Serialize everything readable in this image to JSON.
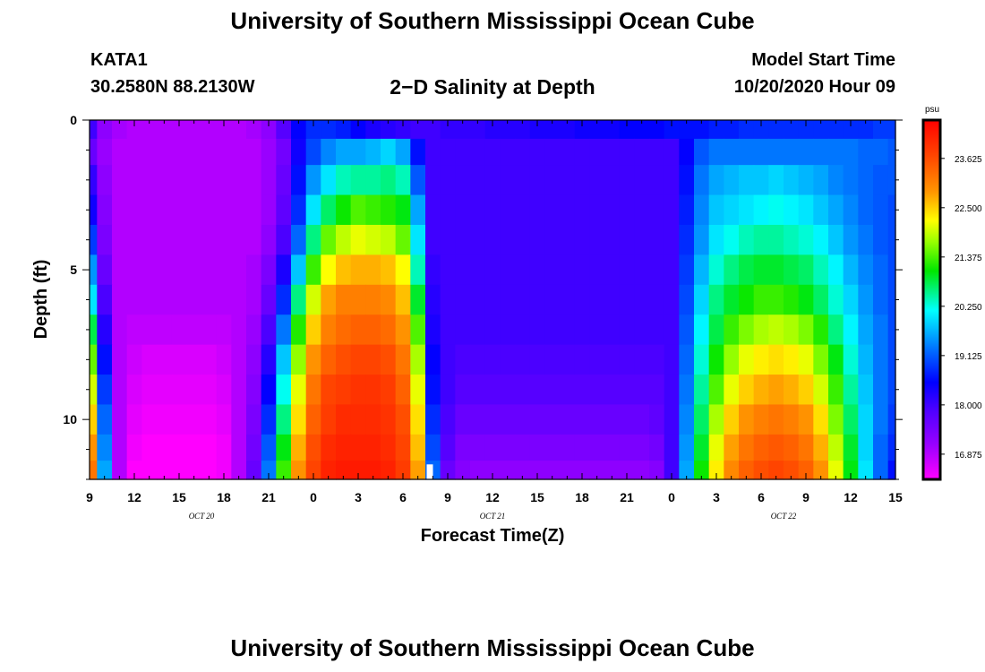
{
  "header": {
    "title": "University of Southern Mississippi Ocean Cube",
    "station": "KATA1",
    "coordinates": "30.2580N 88.2130W",
    "plot_title": "2−D Salinity at Depth",
    "model_start_label": "Model Start Time",
    "model_start_value": "10/20/2020 Hour 09"
  },
  "footer": {
    "title": "University of Southern Mississippi Ocean Cube"
  },
  "chart_data": {
    "type": "heatmap",
    "title": "2−D Salinity at Depth",
    "xlabel": "Forecast Time(Z)",
    "ylabel": "Depth (ft)",
    "x_tick_labels": [
      "9",
      "12",
      "15",
      "18",
      "21",
      "0",
      "3",
      "6",
      "9",
      "12",
      "15",
      "18",
      "21",
      "0",
      "3",
      "6",
      "9",
      "12",
      "15"
    ],
    "x_range_hours": [
      0,
      54
    ],
    "date_labels": [
      "OCT 20",
      "OCT 21",
      "OCT 22"
    ],
    "y_tick_labels": [
      "0",
      "5",
      "10"
    ],
    "y_range_ft": [
      0,
      12
    ],
    "colorbar": {
      "unit": "psu",
      "ticks": [
        "23.625",
        "22.500",
        "21.375",
        "20.250",
        "19.125",
        "18.000",
        "16.875"
      ],
      "range": [
        16.3,
        24.5
      ]
    },
    "depth_centers_ft": [
      0.25,
      1.0,
      2.0,
      3.0,
      4.0,
      5.0,
      6.0,
      7.0,
      8.0,
      9.0,
      10.0,
      11.0,
      11.75
    ],
    "x": [
      0,
      1,
      2,
      3,
      4,
      5,
      6,
      7,
      8,
      9,
      10,
      11,
      12,
      13,
      14,
      15,
      16,
      17,
      18,
      19,
      20,
      21,
      22,
      23,
      24,
      25,
      26,
      27,
      28,
      29,
      30,
      31,
      32,
      33,
      34,
      35,
      36,
      37,
      38,
      39,
      40,
      41,
      42,
      43,
      44,
      45,
      46,
      47,
      48,
      49,
      50,
      51,
      52,
      53,
      54
    ],
    "x_units": "hours since 10/20/2020 09Z",
    "salinity_by_depth": [
      [
        18.0,
        17.2,
        17.0,
        16.9,
        16.9,
        16.9,
        16.9,
        16.9,
        16.9,
        16.9,
        16.9,
        17.0,
        17.2,
        17.8,
        18.5,
        18.8,
        18.8,
        18.7,
        18.5,
        18.3,
        18.2,
        18.1,
        18.0,
        18.0,
        18.1,
        18.1,
        18.1,
        18.2,
        18.2,
        18.2,
        18.3,
        18.3,
        18.3,
        18.4,
        18.4,
        18.4,
        18.5,
        18.5,
        18.5,
        18.6,
        18.6,
        18.6,
        18.7,
        18.7,
        18.8,
        18.8,
        18.8,
        18.8,
        18.8,
        18.8,
        18.8,
        18.8,
        18.8,
        18.9,
        18.9
      ],
      [
        17.6,
        17.1,
        16.9,
        16.9,
        16.9,
        16.9,
        16.9,
        16.9,
        16.9,
        16.9,
        16.9,
        16.9,
        17.1,
        17.5,
        18.4,
        19.0,
        19.4,
        19.6,
        19.6,
        19.7,
        19.9,
        19.6,
        18.6,
        18.0,
        18.0,
        18.0,
        18.0,
        18.0,
        18.0,
        18.0,
        18.0,
        18.0,
        18.0,
        18.0,
        18.0,
        18.0,
        18.0,
        18.0,
        18.0,
        18.0,
        18.5,
        19.1,
        19.3,
        19.3,
        19.3,
        19.3,
        19.3,
        19.3,
        19.3,
        19.3,
        19.3,
        19.3,
        19.2,
        19.2,
        19.1
      ],
      [
        18.1,
        17.2,
        16.9,
        16.9,
        16.9,
        16.9,
        16.9,
        16.9,
        16.9,
        16.9,
        16.9,
        16.9,
        17.1,
        17.6,
        18.6,
        19.5,
        20.0,
        20.4,
        20.5,
        20.5,
        20.6,
        20.4,
        19.1,
        18.0,
        18.0,
        18.0,
        18.0,
        18.0,
        18.0,
        18.0,
        18.0,
        18.0,
        18.0,
        18.0,
        18.0,
        18.0,
        18.0,
        18.0,
        18.0,
        18.0,
        18.6,
        19.3,
        19.6,
        19.7,
        19.8,
        19.8,
        19.9,
        19.8,
        19.7,
        19.6,
        19.4,
        19.3,
        19.2,
        19.1,
        19.1
      ],
      [
        18.4,
        17.3,
        16.9,
        16.9,
        16.9,
        16.9,
        16.9,
        16.9,
        16.9,
        16.9,
        16.9,
        16.9,
        17.1,
        17.7,
        18.8,
        20.0,
        20.7,
        21.1,
        21.4,
        21.3,
        21.2,
        21.0,
        19.6,
        18.0,
        18.0,
        18.0,
        18.0,
        18.0,
        18.0,
        18.0,
        18.0,
        18.0,
        18.0,
        18.0,
        18.0,
        18.0,
        18.0,
        18.0,
        18.0,
        18.0,
        18.7,
        19.4,
        19.8,
        19.9,
        20.0,
        20.1,
        20.2,
        20.1,
        20.0,
        19.8,
        19.6,
        19.4,
        19.2,
        19.1,
        19.0
      ],
      [
        18.9,
        17.4,
        16.9,
        16.9,
        16.9,
        16.9,
        16.9,
        16.9,
        16.9,
        16.9,
        16.9,
        16.9,
        17.2,
        17.9,
        19.2,
        20.6,
        21.5,
        21.9,
        22.1,
        22.0,
        21.9,
        21.5,
        20.0,
        18.0,
        18.0,
        18.0,
        18.0,
        18.0,
        18.0,
        18.0,
        18.0,
        18.0,
        18.0,
        18.0,
        18.0,
        18.0,
        18.0,
        18.0,
        18.0,
        18.0,
        18.8,
        19.5,
        20.0,
        20.2,
        20.4,
        20.5,
        20.5,
        20.4,
        20.3,
        20.1,
        19.8,
        19.5,
        19.3,
        19.1,
        19.0
      ],
      [
        19.5,
        17.6,
        16.9,
        16.9,
        16.9,
        16.9,
        16.9,
        16.9,
        16.9,
        16.9,
        16.9,
        17.0,
        17.4,
        18.3,
        19.8,
        21.3,
        22.2,
        22.6,
        22.7,
        22.7,
        22.6,
        22.2,
        20.4,
        18.1,
        18.0,
        18.0,
        18.0,
        18.0,
        18.0,
        18.0,
        18.0,
        18.0,
        18.0,
        18.0,
        18.0,
        18.0,
        18.0,
        18.0,
        18.0,
        18.0,
        18.9,
        19.7,
        20.3,
        20.6,
        20.8,
        20.9,
        20.9,
        20.8,
        20.7,
        20.4,
        20.1,
        19.7,
        19.4,
        19.2,
        19.0
      ],
      [
        20.0,
        17.9,
        16.9,
        16.9,
        16.9,
        16.9,
        16.9,
        16.9,
        16.9,
        16.9,
        16.9,
        17.0,
        17.6,
        18.8,
        20.6,
        22.0,
        22.8,
        23.1,
        23.1,
        23.1,
        23.0,
        22.6,
        20.9,
        18.2,
        18.0,
        18.0,
        18.0,
        18.0,
        18.0,
        18.0,
        18.0,
        18.0,
        18.0,
        18.0,
        18.0,
        18.0,
        18.0,
        18.0,
        18.0,
        18.0,
        19.0,
        19.9,
        20.6,
        20.9,
        21.1,
        21.3,
        21.3,
        21.2,
        21.0,
        20.7,
        20.3,
        19.9,
        19.5,
        19.2,
        19.0
      ],
      [
        20.8,
        18.2,
        16.9,
        16.8,
        16.8,
        16.8,
        16.8,
        16.8,
        16.8,
        16.8,
        16.9,
        17.1,
        17.9,
        19.3,
        21.2,
        22.5,
        23.1,
        23.3,
        23.4,
        23.4,
        23.3,
        22.9,
        21.4,
        18.3,
        18.0,
        18.0,
        18.0,
        18.0,
        18.0,
        18.0,
        18.0,
        18.0,
        18.0,
        18.0,
        18.0,
        18.0,
        18.0,
        18.0,
        18.0,
        18.0,
        19.1,
        20.1,
        20.8,
        21.3,
        21.6,
        21.8,
        21.9,
        21.8,
        21.6,
        21.2,
        20.6,
        20.1,
        19.6,
        19.3,
        19.0
      ],
      [
        21.5,
        18.6,
        16.9,
        16.7,
        16.6,
        16.6,
        16.6,
        16.6,
        16.6,
        16.7,
        16.9,
        17.2,
        18.2,
        19.8,
        21.7,
        22.9,
        23.4,
        23.6,
        23.7,
        23.7,
        23.6,
        23.2,
        21.8,
        18.5,
        18.0,
        17.9,
        17.9,
        17.9,
        17.9,
        17.9,
        17.9,
        17.9,
        17.9,
        17.9,
        17.9,
        17.9,
        17.9,
        17.9,
        17.9,
        18.0,
        19.2,
        20.3,
        21.1,
        21.7,
        22.1,
        22.3,
        22.4,
        22.3,
        22.1,
        21.6,
        21.0,
        20.3,
        19.7,
        19.3,
        19.0
      ],
      [
        22.0,
        18.9,
        16.9,
        16.6,
        16.5,
        16.5,
        16.5,
        16.5,
        16.5,
        16.6,
        16.9,
        17.3,
        18.5,
        20.2,
        22.1,
        23.2,
        23.7,
        23.8,
        23.9,
        23.9,
        23.8,
        23.4,
        22.1,
        18.6,
        18.0,
        17.8,
        17.8,
        17.8,
        17.8,
        17.8,
        17.8,
        17.8,
        17.8,
        17.8,
        17.8,
        17.8,
        17.8,
        17.8,
        17.8,
        18.0,
        19.3,
        20.5,
        21.4,
        22.1,
        22.5,
        22.7,
        22.8,
        22.7,
        22.5,
        22.0,
        21.3,
        20.5,
        19.8,
        19.3,
        19.0
      ],
      [
        22.5,
        19.2,
        16.9,
        16.5,
        16.4,
        16.4,
        16.4,
        16.4,
        16.4,
        16.5,
        16.9,
        17.4,
        18.8,
        20.6,
        22.4,
        23.4,
        23.8,
        24.0,
        24.0,
        24.0,
        23.9,
        23.6,
        22.4,
        18.8,
        17.9,
        17.6,
        17.6,
        17.6,
        17.6,
        17.6,
        17.6,
        17.6,
        17.6,
        17.6,
        17.6,
        17.6,
        17.6,
        17.6,
        17.7,
        18.0,
        19.4,
        20.7,
        21.8,
        22.5,
        22.9,
        23.1,
        23.2,
        23.1,
        22.9,
        22.4,
        21.6,
        20.7,
        19.9,
        19.3,
        18.9
      ],
      [
        22.9,
        19.4,
        16.9,
        16.4,
        16.3,
        16.3,
        16.3,
        16.3,
        16.3,
        16.4,
        16.9,
        17.5,
        19.1,
        21.0,
        22.7,
        23.6,
        24.0,
        24.1,
        24.1,
        24.1,
        24.0,
        23.7,
        22.6,
        19.0,
        17.8,
        17.4,
        17.4,
        17.4,
        17.4,
        17.4,
        17.4,
        17.4,
        17.4,
        17.4,
        17.4,
        17.4,
        17.4,
        17.4,
        17.5,
        18.0,
        19.5,
        20.9,
        22.1,
        22.8,
        23.2,
        23.4,
        23.5,
        23.4,
        23.2,
        22.7,
        21.9,
        20.9,
        19.9,
        19.2,
        18.8
      ],
      [
        23.2,
        19.6,
        16.9,
        16.3,
        16.3,
        16.3,
        16.3,
        16.3,
        16.3,
        16.4,
        16.9,
        17.6,
        19.3,
        21.3,
        22.9,
        23.7,
        24.1,
        24.2,
        24.2,
        24.2,
        24.1,
        23.8,
        22.8,
        19.2,
        17.6,
        17.3,
        17.2,
        17.2,
        17.2,
        17.2,
        17.2,
        17.2,
        17.2,
        17.2,
        17.2,
        17.2,
        17.2,
        17.2,
        17.3,
        18.0,
        19.6,
        21.1,
        22.3,
        23.0,
        23.4,
        23.6,
        23.7,
        23.6,
        23.4,
        22.9,
        22.1,
        21.0,
        20.0,
        19.2,
        18.6
      ]
    ],
    "marker": {
      "x_hour": 22.8,
      "depth_ft": 11.75,
      "color": "#ffffff"
    }
  }
}
